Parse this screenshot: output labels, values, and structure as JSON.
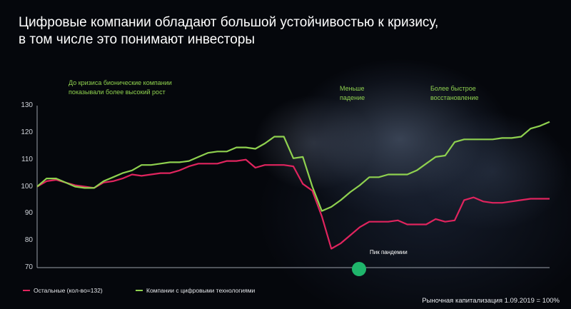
{
  "title_line1": "Цифровые компании обладают большой устойчивостью к кризису,",
  "title_line2": "в том числе это понимают инвесторы",
  "annotations": {
    "before_line1": "До кризиса бионические компании",
    "before_line2": "показывали более высокий рост",
    "drop_line1": "Меньше",
    "drop_line2": "падение",
    "recovery_line1": "Более быстрое",
    "recovery_line2": "восстановление",
    "peak": "Пик пандемии"
  },
  "footnote": "Рыночная капитализация 1.09.2019 = 100%",
  "colors": {
    "others": "#e0245e",
    "digital": "#8fd14f",
    "peak_dot": "#1fb56b"
  },
  "chart_data": {
    "type": "line",
    "x": [
      1,
      2,
      3,
      4,
      5,
      6,
      7,
      8,
      9,
      10,
      11,
      12,
      13,
      14,
      15,
      16,
      17,
      18,
      19,
      20,
      21,
      22,
      23,
      24,
      25,
      26,
      27,
      28,
      29,
      30,
      31,
      32,
      33,
      34,
      35,
      36,
      37,
      38,
      39,
      40,
      41,
      42,
      43,
      44,
      45,
      46,
      47,
      48,
      49,
      50,
      51,
      52,
      53,
      54,
      55
    ],
    "yticks": [
      70,
      80,
      90,
      100,
      110,
      120,
      130
    ],
    "ylim": [
      70,
      130
    ],
    "grid": false,
    "legend_position": "bottom-left",
    "series": [
      {
        "name": "Остальные (кол-во=132)",
        "values": [
          100,
          102,
          102.5,
          101.5,
          100.5,
          100,
          99.5,
          101.5,
          102,
          103,
          104.5,
          104,
          104.5,
          105,
          105,
          106,
          107.5,
          108.5,
          108.5,
          108.5,
          109.5,
          109.5,
          110,
          107,
          108,
          108,
          108,
          107.5,
          101,
          98.5,
          89,
          77,
          79,
          82,
          85,
          87,
          87,
          87,
          87.5,
          86,
          86,
          86,
          88,
          87,
          87.5,
          95,
          96,
          94.5,
          94,
          94,
          94.5,
          95,
          95.5,
          95.5,
          95.5
        ]
      },
      {
        "name": "Компании с цифровыми технологиями",
        "values": [
          100,
          103,
          103,
          101.5,
          100,
          99.5,
          99.5,
          102,
          103.5,
          105,
          106,
          108,
          108,
          108.5,
          109,
          109,
          109.5,
          111,
          112.5,
          113,
          113,
          114.5,
          114.5,
          114,
          116,
          118.5,
          118.5,
          110.5,
          111,
          100,
          91,
          92.5,
          95,
          98,
          100.5,
          103.5,
          103.5,
          104.5,
          104.5,
          104.5,
          106,
          108.5,
          111,
          111.5,
          116.5,
          117.5,
          117.5,
          117.5,
          117.5,
          118,
          118,
          118.5,
          121.5,
          122.5,
          124
        ]
      }
    ]
  }
}
